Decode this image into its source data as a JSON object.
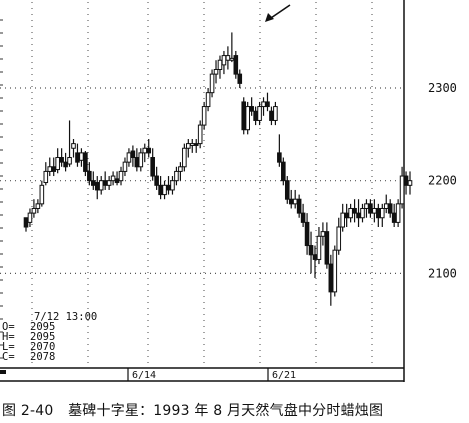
{
  "chart_data": {
    "type": "candlestick",
    "period": "1993年8月 天然气 盘中分时",
    "y_axis": {
      "ticks": [
        2100,
        2200,
        2300
      ],
      "ylim": [
        2000,
        2395
      ],
      "position": "right"
    },
    "x_axis": {
      "labels": [
        "6/14",
        "6/21"
      ]
    },
    "grid": true,
    "readout": {
      "time": "7/12 13:00",
      "open_label": "O=",
      "open": "2095",
      "high_label": "H=",
      "high": "2095",
      "low_label": "L=",
      "low": "2070",
      "close_label": "C=",
      "close": "2078"
    },
    "annotation": {
      "type": "arrow",
      "points_to": "gravestone doji at session high"
    },
    "candles": [
      [
        2160,
        2160,
        2145,
        2150
      ],
      [
        2155,
        2170,
        2150,
        2165
      ],
      [
        2165,
        2180,
        2160,
        2170
      ],
      [
        2170,
        2180,
        2165,
        2175
      ],
      [
        2175,
        2200,
        2172,
        2195
      ],
      [
        2198,
        2220,
        2195,
        2210
      ],
      [
        2210,
        2225,
        2205,
        2215
      ],
      [
        2215,
        2225,
        2205,
        2210
      ],
      [
        2212,
        2235,
        2208,
        2225
      ],
      [
        2225,
        2235,
        2215,
        2220
      ],
      [
        2220,
        2230,
        2210,
        2215
      ],
      [
        2218,
        2265,
        2215,
        2225
      ],
      [
        2235,
        2245,
        2225,
        2240
      ],
      [
        2230,
        2240,
        2215,
        2220
      ],
      [
        2222,
        2235,
        2215,
        2230
      ],
      [
        2230,
        2232,
        2205,
        2210
      ],
      [
        2210,
        2220,
        2195,
        2200
      ],
      [
        2200,
        2210,
        2190,
        2195
      ],
      [
        2198,
        2205,
        2180,
        2190
      ],
      [
        2190,
        2205,
        2185,
        2200
      ],
      [
        2200,
        2210,
        2190,
        2195
      ],
      [
        2195,
        2205,
        2190,
        2200
      ],
      [
        2200,
        2210,
        2195,
        2205
      ],
      [
        2202,
        2210,
        2195,
        2198
      ],
      [
        2200,
        2215,
        2195,
        2210
      ],
      [
        2210,
        2225,
        2205,
        2220
      ],
      [
        2220,
        2235,
        2215,
        2230
      ],
      [
        2232,
        2238,
        2215,
        2225
      ],
      [
        2225,
        2235,
        2210,
        2215
      ],
      [
        2215,
        2235,
        2210,
        2230
      ],
      [
        2230,
        2240,
        2220,
        2235
      ],
      [
        2235,
        2245,
        2225,
        2230
      ],
      [
        2225,
        2235,
        2200,
        2205
      ],
      [
        2205,
        2215,
        2190,
        2195
      ],
      [
        2195,
        2205,
        2180,
        2185
      ],
      [
        2185,
        2200,
        2180,
        2195
      ],
      [
        2195,
        2205,
        2185,
        2190
      ],
      [
        2190,
        2205,
        2185,
        2200
      ],
      [
        2200,
        2215,
        2195,
        2210
      ],
      [
        2210,
        2220,
        2200,
        2215
      ],
      [
        2215,
        2240,
        2210,
        2235
      ],
      [
        2235,
        2245,
        2225,
        2240
      ],
      [
        2238,
        2245,
        2230,
        2240
      ],
      [
        2240,
        2245,
        2230,
        2238
      ],
      [
        2240,
        2265,
        2235,
        2260
      ],
      [
        2260,
        2285,
        2255,
        2280
      ],
      [
        2280,
        2300,
        2275,
        2295
      ],
      [
        2295,
        2320,
        2290,
        2315
      ],
      [
        2315,
        2330,
        2305,
        2320
      ],
      [
        2320,
        2335,
        2310,
        2330
      ],
      [
        2325,
        2340,
        2315,
        2335
      ],
      [
        2330,
        2345,
        2320,
        2335
      ],
      [
        2330,
        2360,
        2328,
        2332
      ],
      [
        2335,
        2340,
        2310,
        2315
      ],
      [
        2315,
        2320,
        2300,
        2305
      ],
      [
        2285,
        2290,
        2250,
        2255
      ],
      [
        2255,
        2285,
        2250,
        2280
      ],
      [
        2280,
        2290,
        2270,
        2275
      ],
      [
        2275,
        2280,
        2260,
        2265
      ],
      [
        2265,
        2285,
        2260,
        2280
      ],
      [
        2280,
        2290,
        2270,
        2285
      ],
      [
        2285,
        2295,
        2275,
        2280
      ],
      [
        2275,
        2280,
        2260,
        2265
      ],
      [
        2265,
        2285,
        2260,
        2280
      ],
      [
        2230,
        2250,
        2215,
        2220
      ],
      [
        2220,
        2225,
        2195,
        2200
      ],
      [
        2200,
        2205,
        2175,
        2180
      ],
      [
        2180,
        2190,
        2170,
        2175
      ],
      [
        2175,
        2190,
        2170,
        2180
      ],
      [
        2180,
        2185,
        2160,
        2165
      ],
      [
        2165,
        2175,
        2150,
        2155
      ],
      [
        2155,
        2165,
        2120,
        2130
      ],
      [
        2130,
        2145,
        2100,
        2120
      ],
      [
        2120,
        2130,
        2095,
        2115
      ],
      [
        2115,
        2150,
        2110,
        2140
      ],
      [
        2140,
        2155,
        2130,
        2145
      ],
      [
        2145,
        2155,
        2105,
        2110
      ],
      [
        2110,
        2120,
        2065,
        2080
      ],
      [
        2080,
        2130,
        2075,
        2125
      ],
      [
        2125,
        2160,
        2120,
        2150
      ],
      [
        2150,
        2175,
        2145,
        2165
      ],
      [
        2165,
        2175,
        2150,
        2160
      ],
      [
        2160,
        2175,
        2155,
        2170
      ],
      [
        2170,
        2180,
        2155,
        2165
      ],
      [
        2165,
        2180,
        2150,
        2160
      ],
      [
        2160,
        2175,
        2155,
        2170
      ],
      [
        2170,
        2180,
        2160,
        2175
      ],
      [
        2175,
        2180,
        2160,
        2165
      ],
      [
        2165,
        2180,
        2155,
        2170
      ],
      [
        2170,
        2175,
        2150,
        2160
      ],
      [
        2160,
        2175,
        2150,
        2170
      ],
      [
        2170,
        2185,
        2165,
        2175
      ],
      [
        2175,
        2180,
        2160,
        2165
      ],
      [
        2165,
        2175,
        2150,
        2155
      ],
      [
        2155,
        2180,
        2150,
        2175
      ],
      [
        2175,
        2215,
        2170,
        2205
      ],
      [
        2205,
        2210,
        2185,
        2195
      ],
      [
        2195,
        2210,
        2185,
        2200
      ]
    ]
  },
  "caption": {
    "figure_number": "图 2-40",
    "text": "墓碑十字星：1993 年 8 月天然气盘中分时蜡烛图"
  }
}
